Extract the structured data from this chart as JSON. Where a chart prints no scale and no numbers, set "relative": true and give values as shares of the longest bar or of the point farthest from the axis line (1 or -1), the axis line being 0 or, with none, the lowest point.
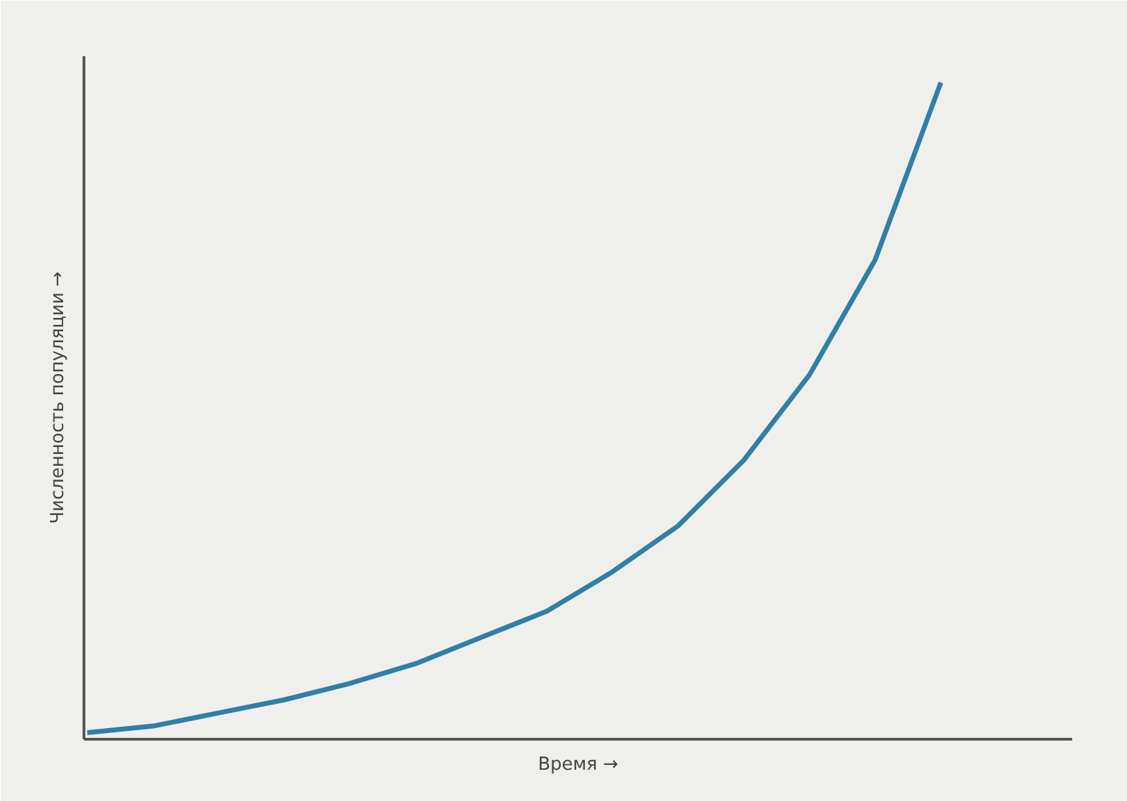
{
  "chart_data": {
    "type": "line",
    "relative": true,
    "xlabel": "Время →",
    "ylabel": "Численность популяции →",
    "categories": [
      null,
      null,
      null,
      null,
      null,
      null,
      null,
      null,
      null,
      null,
      null,
      null,
      null,
      null
    ],
    "series": [
      {
        "color": "#2f7fa6",
        "values": [
          0.01,
          0.02,
          0.04,
          0.06,
          0.085,
          0.115,
          0.155,
          0.195,
          0.255,
          0.325,
          0.425,
          0.555,
          0.73,
          1.0
        ]
      }
    ],
    "grid": false,
    "marker": "none",
    "line_style": "solid"
  }
}
